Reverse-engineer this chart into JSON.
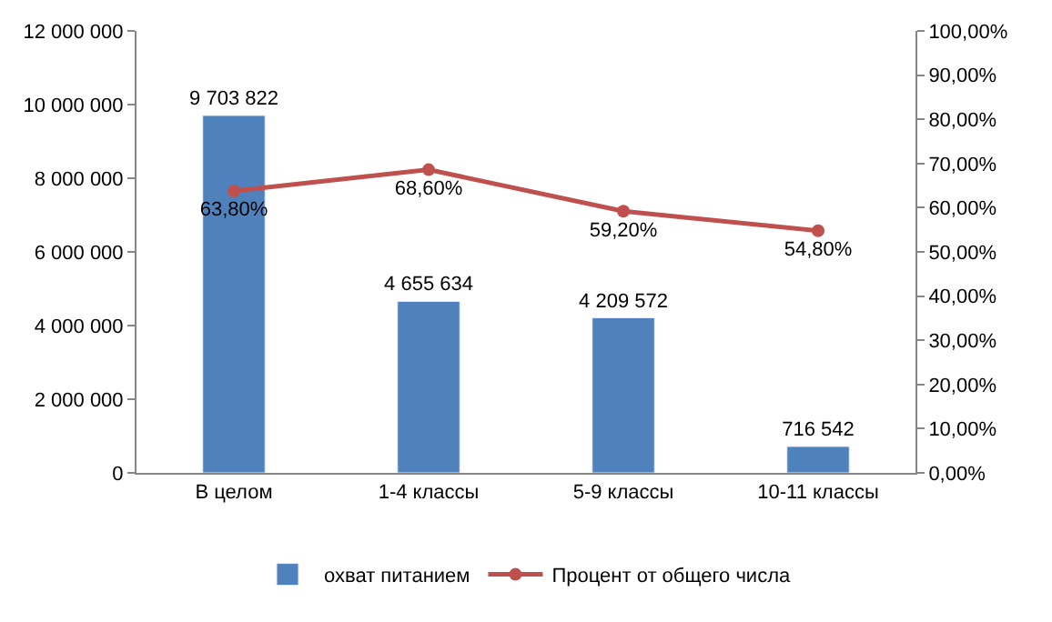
{
  "chart_data": {
    "type": "bar",
    "categories": [
      "В целом",
      "1-4 классы",
      "5-9 классы",
      "10-11 классы"
    ],
    "series": [
      {
        "name": "охват питанием",
        "color": "#4f81bd",
        "values": [
          9703822,
          4655634,
          4209572,
          716542
        ],
        "value_labels": [
          "9 703 822",
          "4 655 634",
          "4 209 572",
          "716 542"
        ]
      },
      {
        "name": "Процент от общего числа",
        "type": "line",
        "axis": "y2",
        "color": "#c0504d",
        "marker": "circle",
        "values": [
          63.8,
          68.6,
          59.2,
          54.8
        ],
        "value_labels": [
          "63,80%",
          "68,60%",
          "59,20%",
          "54,80%"
        ]
      }
    ],
    "ylim": [
      0,
      12000000
    ],
    "yticks": [
      {
        "value": 0,
        "label": "0"
      },
      {
        "value": 2000000,
        "label": "2 000 000"
      },
      {
        "value": 4000000,
        "label": "4 000 000"
      },
      {
        "value": 6000000,
        "label": "6 000 000"
      },
      {
        "value": 8000000,
        "label": "8 000 000"
      },
      {
        "value": 10000000,
        "label": "10 000 000"
      },
      {
        "value": 12000000,
        "label": "12 000 000"
      }
    ],
    "y2lim": [
      0,
      100
    ],
    "y2ticks": [
      {
        "value": 0,
        "label": "0,00%"
      },
      {
        "value": 10,
        "label": "10,00%"
      },
      {
        "value": 20,
        "label": "20,00%"
      },
      {
        "value": 30,
        "label": "30,00%"
      },
      {
        "value": 40,
        "label": "40,00%"
      },
      {
        "value": 50,
        "label": "50,00%"
      },
      {
        "value": 60,
        "label": "60,00%"
      },
      {
        "value": 70,
        "label": "70,00%"
      },
      {
        "value": 80,
        "label": "80,00%"
      },
      {
        "value": 90,
        "label": "90,00%"
      },
      {
        "value": 100,
        "label": "100,00%"
      }
    ],
    "legend": "bottom"
  }
}
